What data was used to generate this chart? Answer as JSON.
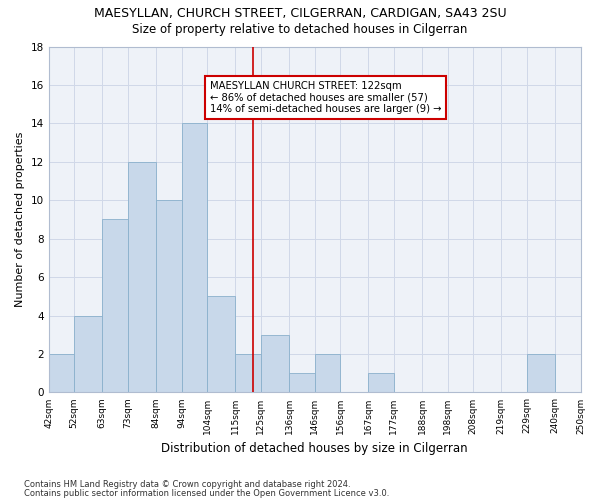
{
  "title": "MAESYLLAN, CHURCH STREET, CILGERRAN, CARDIGAN, SA43 2SU",
  "subtitle": "Size of property relative to detached houses in Cilgerran",
  "xlabel": "Distribution of detached houses by size in Cilgerran",
  "ylabel": "Number of detached properties",
  "bar_color": "#c8d8ea",
  "bar_edgecolor": "#8ab0cc",
  "bar_left_edges": [
    42,
    52,
    63,
    73,
    84,
    94,
    104,
    115,
    125,
    136,
    146,
    156,
    167,
    177,
    188,
    198,
    208,
    219,
    229,
    240
  ],
  "bar_widths": [
    10,
    11,
    10,
    11,
    10,
    10,
    11,
    10,
    11,
    10,
    10,
    11,
    10,
    11,
    10,
    10,
    11,
    10,
    11,
    10
  ],
  "bar_heights": [
    2,
    4,
    9,
    12,
    10,
    14,
    5,
    2,
    3,
    1,
    2,
    0,
    1,
    0,
    0,
    0,
    0,
    0,
    2,
    0
  ],
  "tick_labels": [
    "42sqm",
    "52sqm",
    "63sqm",
    "73sqm",
    "84sqm",
    "94sqm",
    "104sqm",
    "115sqm",
    "125sqm",
    "136sqm",
    "146sqm",
    "156sqm",
    "167sqm",
    "177sqm",
    "188sqm",
    "198sqm",
    "208sqm",
    "219sqm",
    "229sqm",
    "240sqm",
    "250sqm"
  ],
  "tick_positions": [
    42,
    52,
    63,
    73,
    84,
    94,
    104,
    115,
    125,
    136,
    146,
    156,
    167,
    177,
    188,
    198,
    208,
    219,
    229,
    240,
    250
  ],
  "vline_x": 122,
  "vline_color": "#cc0000",
  "ylim": [
    0,
    18
  ],
  "xlim": [
    42,
    250
  ],
  "yticks": [
    0,
    2,
    4,
    6,
    8,
    10,
    12,
    14,
    16,
    18
  ],
  "annotation_text": "MAESYLLAN CHURCH STREET: 122sqm\n← 86% of detached houses are smaller (57)\n14% of semi-detached houses are larger (9) →",
  "annotation_box_color": "#cc0000",
  "grid_color": "#d0d8e8",
  "background_color": "#eef2f8",
  "footer_line1": "Contains HM Land Registry data © Crown copyright and database right 2024.",
  "footer_line2": "Contains public sector information licensed under the Open Government Licence v3.0."
}
